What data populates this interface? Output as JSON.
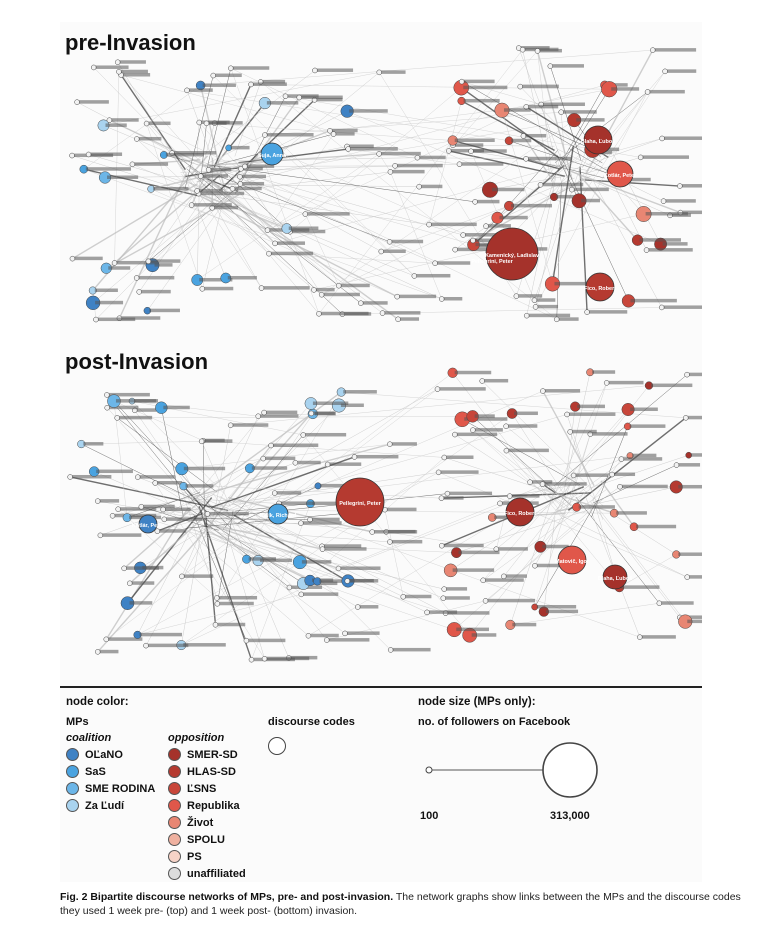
{
  "panels": {
    "pre_title": "pre-Invasion",
    "post_title": "post-Invasion"
  },
  "legend": {
    "node_color_title": "node color:",
    "mps_label": "MPs",
    "coalition_label": "coalition",
    "opposition_label": "opposition",
    "discourse_codes_label": "discourse codes",
    "node_size_title": "node size (MPs only):",
    "node_size_subtitle": "no. of followers on Facebook",
    "size_min_label": "100",
    "size_max_label": "313,000",
    "coalition": [
      {
        "name": "OĽaNO",
        "color": "#3f82c4"
      },
      {
        "name": "SaS",
        "color": "#4aa3e0"
      },
      {
        "name": "SME RODINA",
        "color": "#6cb6e8"
      },
      {
        "name": "Za Ľudí",
        "color": "#a9d3ef"
      }
    ],
    "opposition": [
      {
        "name": "SMER-SD",
        "color": "#a5322b"
      },
      {
        "name": "HLAS-SD",
        "color": "#b53a30"
      },
      {
        "name": "ĽSNS",
        "color": "#c8463a"
      },
      {
        "name": "Republika",
        "color": "#e0574a"
      },
      {
        "name": "Život",
        "color": "#e88673"
      },
      {
        "name": "SPOLU",
        "color": "#efb1a0"
      },
      {
        "name": "PS",
        "color": "#f6d3c7"
      },
      {
        "name": "unaffiliated",
        "color": "#dddddd"
      }
    ]
  },
  "caption": {
    "bold": "Fig. 2 Bipartite discourse networks of MPs, pre- and post-invasion.",
    "text": " The network graphs show links between the MPs and the discourse codes they used 1 week pre- (top) and 1 week post- (bottom) invasion."
  },
  "network_labels": {
    "pre": [
      "Kamenický, Ladislav",
      "Pellegrini, Peter",
      "Fico, Robert",
      "Blaha, Ľuboš",
      "Suja, Anna",
      "Kotlár, Peter"
    ],
    "post": [
      "Pellegrini, Peter",
      "Fico, Robert",
      "Matovič, Igor",
      "Blaha, Ľuboš",
      "Kotlár, Peter",
      "Sulík, Richard"
    ]
  }
}
